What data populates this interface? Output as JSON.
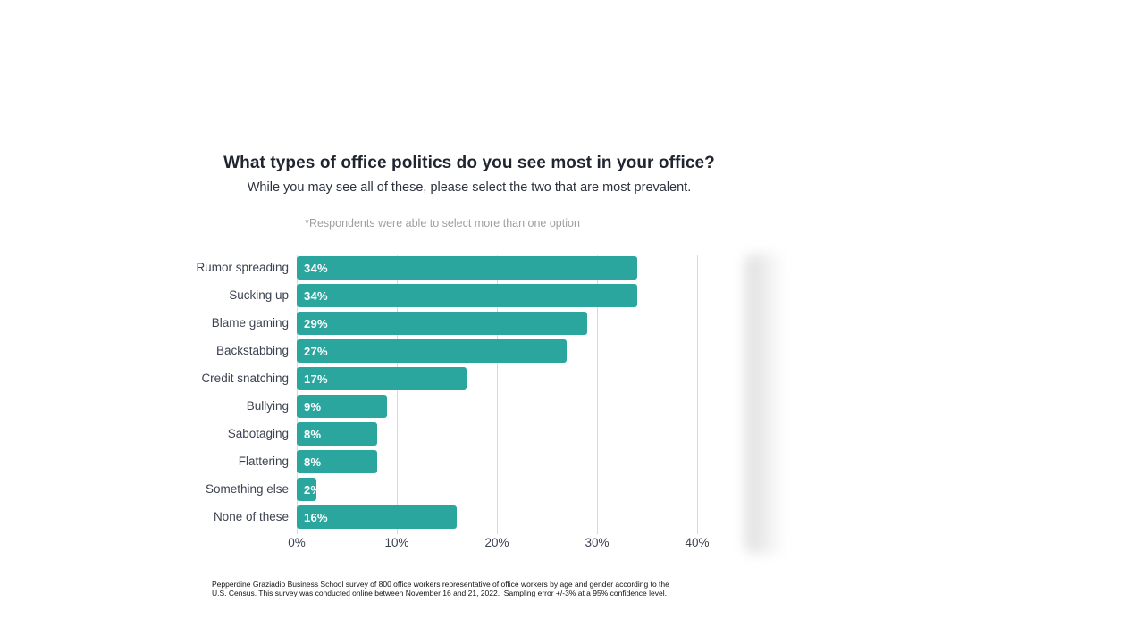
{
  "header": {
    "title": "What types of office politics do you see most in your office?",
    "subtitle": "While you may see all of these, please select the two that are most prevalent.",
    "note": "*Respondents were able to select more than one option"
  },
  "chart_data": {
    "type": "bar",
    "orientation": "horizontal",
    "title": "What types of office politics do you see most in your office?",
    "subtitle": "While you may see all of these, please select the two that are most prevalent.",
    "annotation": "*Respondents were able to select more than one option",
    "categories": [
      "Rumor spreading",
      "Sucking up",
      "Blame gaming",
      "Backstabbing",
      "Credit snatching",
      "Bullying",
      "Sabotaging",
      "Flattering",
      "Something else",
      "None of these"
    ],
    "values": [
      34,
      34,
      29,
      27,
      17,
      9,
      8,
      8,
      2,
      16
    ],
    "value_labels": [
      "34%",
      "34%",
      "29%",
      "27%",
      "17%",
      "9%",
      "8%",
      "8%",
      "2%",
      "16%"
    ],
    "xlabel": "",
    "ylabel": "",
    "xlim": [
      0,
      40
    ],
    "xtick_labels": [
      "0%",
      "10%",
      "20%",
      "30%",
      "40%"
    ],
    "xtick_values": [
      0,
      10,
      20,
      30,
      40
    ],
    "grid": true,
    "legend": false,
    "bar_color": "#2ba69e",
    "grid_color": "#d9d9d9",
    "value_label_color": "#ffffff"
  },
  "footer": {
    "lines": [
      "Pepperdine Graziadio Business School survey of 800 office workers representative of office workers by age and gender according to the",
      "U.S. Census. This survey was conducted online between November 16 and 21, 2022.  Sampling error +/-3% at a 95% confidence level."
    ]
  }
}
